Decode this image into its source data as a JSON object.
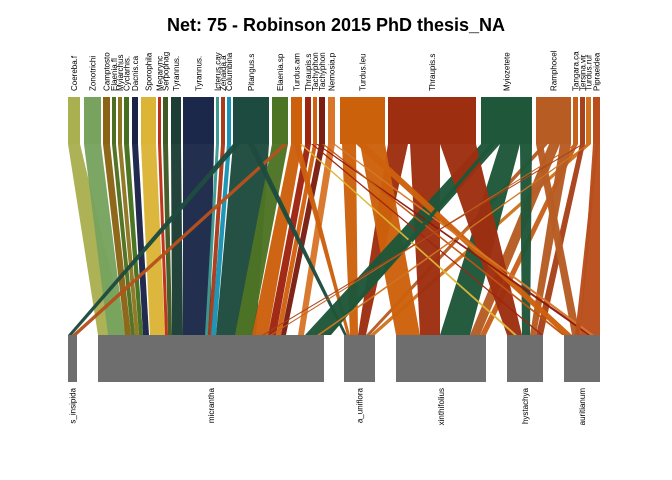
{
  "chart_data": {
    "type": "bipartite",
    "title": "Net: 75 - Robinson 2015 PhD thesis_NA",
    "higher_boxes": [
      {
        "label": "Coereba.f",
        "x0": 68,
        "x1": 80,
        "color": "#a9b04f"
      },
      {
        "label": "Zonotrichi",
        "x0": 84,
        "x1": 101,
        "color": "#77a35e"
      },
      {
        "label": "Camptosto",
        "x0": 103,
        "x1": 110,
        "color": "#8a6414"
      },
      {
        "label": "Elaenia.fl",
        "x0": 112,
        "x1": 116,
        "color": "#4e6f1f"
      },
      {
        "label": "Myiarchus",
        "x0": 118,
        "x1": 122,
        "color": "#8e7621"
      },
      {
        "label": "Cyclarhis.",
        "x0": 124,
        "x1": 129,
        "color": "#45711e"
      },
      {
        "label": "Dacnis.ca",
        "x0": 132,
        "x1": 138,
        "color": "#1b2349"
      },
      {
        "label": "Sporophila",
        "x0": 141,
        "x1": 156,
        "color": "#dcb537"
      },
      {
        "label": "Megarync",
        "x0": 158,
        "x1": 161,
        "color": "#bd2f16"
      },
      {
        "label": "Serpophag",
        "x0": 163,
        "x1": 168,
        "color": "#3f5a23"
      },
      {
        "label": "Tyrannus.",
        "x0": 171,
        "x1": 181,
        "color": "#1c3e34"
      },
      {
        "label": "Tyrannus.",
        "x0": 183,
        "x1": 214,
        "color": "#1b2849"
      },
      {
        "label": "Icterus.cay",
        "x0": 216,
        "x1": 219,
        "color": "#3d9a8e"
      },
      {
        "label": "Zenaida.a",
        "x0": 221,
        "x1": 225,
        "color": "#ab3a1a"
      },
      {
        "label": "Columbina",
        "x0": 227,
        "x1": 231,
        "color": "#1993b5"
      },
      {
        "label": "Pitangus.s",
        "x0": 233,
        "x1": 269,
        "color": "#1e4b3f"
      },
      {
        "label": "Elaenia.sp",
        "x0": 272,
        "x1": 288,
        "color": "#4d7424"
      },
      {
        "label": "Turdus.am",
        "x0": 291,
        "x1": 302,
        "color": "#cc600c"
      },
      {
        "label": "Thraupis.s",
        "x0": 305,
        "x1": 311,
        "color": "#9e2410"
      },
      {
        "label": "Tachyphon",
        "x0": 313,
        "x1": 317,
        "color": "#d2600e"
      },
      {
        "label": "Tachyphon",
        "x0": 319,
        "x1": 325,
        "color": "#7b1d12"
      },
      {
        "label": "Nemosia.p",
        "x0": 328,
        "x1": 335,
        "color": "#d9762a"
      },
      {
        "label": "Turdus.leu",
        "x0": 340,
        "x1": 385,
        "color": "#cc610c"
      },
      {
        "label": "Thraupis.s",
        "x0": 388,
        "x1": 476,
        "color": "#9e2e10"
      },
      {
        "label": "Myiozetete",
        "x0": 481,
        "x1": 532,
        "color": "#1e5739"
      },
      {
        "label": "Ramphocel",
        "x0": 536,
        "x1": 571,
        "color": "#b75c23"
      },
      {
        "label": "Tangara.ca",
        "x0": 573,
        "x1": 578,
        "color": "#c7601a"
      },
      {
        "label": "Tersina.vir",
        "x0": 580,
        "x1": 585,
        "color": "#a8411a"
      },
      {
        "label": "Turdus.ruf",
        "x0": 586,
        "x1": 591,
        "color": "#d07420"
      },
      {
        "label": "Pipraeidea",
        "x0": 593,
        "x1": 600,
        "color": "#b94d1b"
      }
    ],
    "lower_boxes": [
      {
        "label": "s_insipida",
        "x0": 68,
        "x1": 77
      },
      {
        "label": "micrantha",
        "x0": 98,
        "x1": 324
      },
      {
        "label": "a_uniflora",
        "x0": 344,
        "x1": 375
      },
      {
        "label": "xinthifolius",
        "x0": 396,
        "x1": 486
      },
      {
        "label": "hystachya",
        "x0": 507,
        "x1": 543
      },
      {
        "label": "auritianum",
        "x0": 564,
        "x1": 600
      }
    ],
    "links": [
      {
        "t": [
          68,
          80
        ],
        "b": [
          98,
          126
        ],
        "c": "#a9b04f"
      },
      {
        "t": [
          84,
          101
        ],
        "b": [
          108,
          125
        ],
        "c": "#77a35e"
      },
      {
        "t": [
          103,
          110
        ],
        "b": [
          125,
          131
        ],
        "c": "#8a6414"
      },
      {
        "t": [
          112,
          116
        ],
        "b": [
          131,
          135
        ],
        "c": "#4e6f1f"
      },
      {
        "t": [
          118,
          122
        ],
        "b": [
          135,
          139
        ],
        "c": "#8e7621"
      },
      {
        "t": [
          124,
          129
        ],
        "b": [
          139,
          143
        ],
        "c": "#45711e"
      },
      {
        "t": [
          132,
          138
        ],
        "b": [
          143,
          149
        ],
        "c": "#1b2349"
      },
      {
        "t": [
          141,
          156
        ],
        "b": [
          150,
          165
        ],
        "c": "#dcb537"
      },
      {
        "t": [
          158,
          161
        ],
        "b": [
          165,
          168
        ],
        "c": "#bd2f16"
      },
      {
        "t": [
          163,
          168
        ],
        "b": [
          168,
          172
        ],
        "c": "#3f5a23"
      },
      {
        "t": [
          171,
          181
        ],
        "b": [
          172,
          183
        ],
        "c": "#1c3e34"
      },
      {
        "t": [
          183,
          214
        ],
        "b": [
          183,
          210
        ],
        "c": "#1b2849"
      },
      {
        "t": [
          216,
          219
        ],
        "b": [
          205,
          208
        ],
        "c": "#3d9a8e"
      },
      {
        "t": [
          221,
          225
        ],
        "b": [
          208,
          212
        ],
        "c": "#ab3a1a"
      },
      {
        "t": [
          227,
          231
        ],
        "b": [
          211,
          216
        ],
        "c": "#1993b5"
      },
      {
        "t": [
          233,
          269
        ],
        "b": [
          216,
          256
        ],
        "c": "#1e4b3f"
      },
      {
        "t": [
          272,
          288
        ],
        "b": [
          235,
          252
        ],
        "c": "#4d7424"
      },
      {
        "t": [
          291,
          302
        ],
        "b": [
          252,
          268
        ],
        "c": "#cc600c"
      },
      {
        "t": [
          305,
          311
        ],
        "b": [
          268,
          276
        ],
        "c": "#9e2410"
      },
      {
        "t": [
          313,
          317
        ],
        "b": [
          276,
          281
        ],
        "c": "#d2600e"
      },
      {
        "t": [
          319,
          325
        ],
        "b": [
          281,
          286
        ],
        "c": "#7b1d12"
      },
      {
        "t": [
          328,
          335
        ],
        "b": [
          298,
          304
        ],
        "c": "#d9762a"
      },
      {
        "t": [
          233,
          240
        ],
        "b": [
          68,
          72
        ],
        "c": "#1e4b3f"
      },
      {
        "t": [
          283,
          288
        ],
        "b": [
          72,
          77
        ],
        "c": "#b5521d"
      },
      {
        "t": [
          248,
          254
        ],
        "b": [
          344,
          347
        ],
        "c": "#1e4b3f"
      },
      {
        "t": [
          294,
          300
        ],
        "b": [
          347,
          350
        ],
        "c": "#cc600c"
      },
      {
        "t": [
          342,
          356
        ],
        "b": [
          350,
          358
        ],
        "c": "#cc610c"
      },
      {
        "t": [
          388,
          408
        ],
        "b": [
          358,
          366
        ],
        "c": "#9e2e10"
      },
      {
        "t": [
          543,
          548
        ],
        "b": [
          366,
          370
        ],
        "c": "#b75c23"
      },
      {
        "t": [
          586,
          591
        ],
        "b": [
          370,
          375
        ],
        "c": "#d07420"
      },
      {
        "t": [
          360,
          385
        ],
        "b": [
          396,
          420
        ],
        "c": "#cc610c"
      },
      {
        "t": [
          410,
          440
        ],
        "b": [
          420,
          440
        ],
        "c": "#9e2e10"
      },
      {
        "t": [
          481,
          500
        ],
        "b": [
          305,
          330
        ],
        "c": "#1e5739"
      },
      {
        "t": [
          500,
          520
        ],
        "b": [
          440,
          470
        ],
        "c": "#1e5739"
      },
      {
        "t": [
          549,
          560
        ],
        "b": [
          470,
          480
        ],
        "c": "#b75c23"
      },
      {
        "t": [
          573,
          578
        ],
        "b": [
          480,
          486
        ],
        "c": "#c7601a"
      },
      {
        "t": [
          440,
          476
        ],
        "b": [
          507,
          522
        ],
        "c": "#9e2e10"
      },
      {
        "t": [
          520,
          532
        ],
        "b": [
          522,
          530
        ],
        "c": "#1e5739"
      },
      {
        "t": [
          560,
          571
        ],
        "b": [
          530,
          536
        ],
        "c": "#b75c23"
      },
      {
        "t": [
          580,
          585
        ],
        "b": [
          536,
          543
        ],
        "c": "#a8411a"
      },
      {
        "t": [
          356,
          365
        ],
        "b": [
          564,
          572
        ],
        "c": "#cc610c"
      },
      {
        "t": [
          536,
          543
        ],
        "b": [
          572,
          580
        ],
        "c": "#b75c23"
      },
      {
        "t": [
          593,
          600
        ],
        "b": [
          580,
          600
        ],
        "c": "#b94d1b"
      },
      {
        "t": [
          300,
          302
        ],
        "b": [
          514,
          517
        ],
        "c": "#dcb537"
      },
      {
        "t": [
          311,
          313
        ],
        "b": [
          541,
          543
        ],
        "c": "#9e2410"
      },
      {
        "t": [
          316,
          318
        ],
        "b": [
          588,
          592
        ],
        "c": "#8b1a10"
      },
      {
        "t": [
          322,
          324
        ],
        "b": [
          562,
          565
        ],
        "c": "#c2540f"
      },
      {
        "t": [
          333,
          335
        ],
        "b": [
          590,
          594
        ],
        "c": "#d9762a"
      },
      {
        "t": [
          490,
          495
        ],
        "b": [
          327,
          331
        ],
        "c": "#1e5739"
      },
      {
        "t": [
          575,
          577
        ],
        "b": [
          270,
          272
        ],
        "c": "#c7601a"
      },
      {
        "t": [
          582,
          584
        ],
        "b": [
          262,
          264
        ],
        "c": "#a8411a"
      },
      {
        "t": [
          588,
          590
        ],
        "b": [
          317,
          320
        ],
        "c": "#d07420"
      },
      {
        "t": [
          596,
          598
        ],
        "b": [
          575,
          580
        ],
        "c": "#b94d1b"
      }
    ]
  }
}
